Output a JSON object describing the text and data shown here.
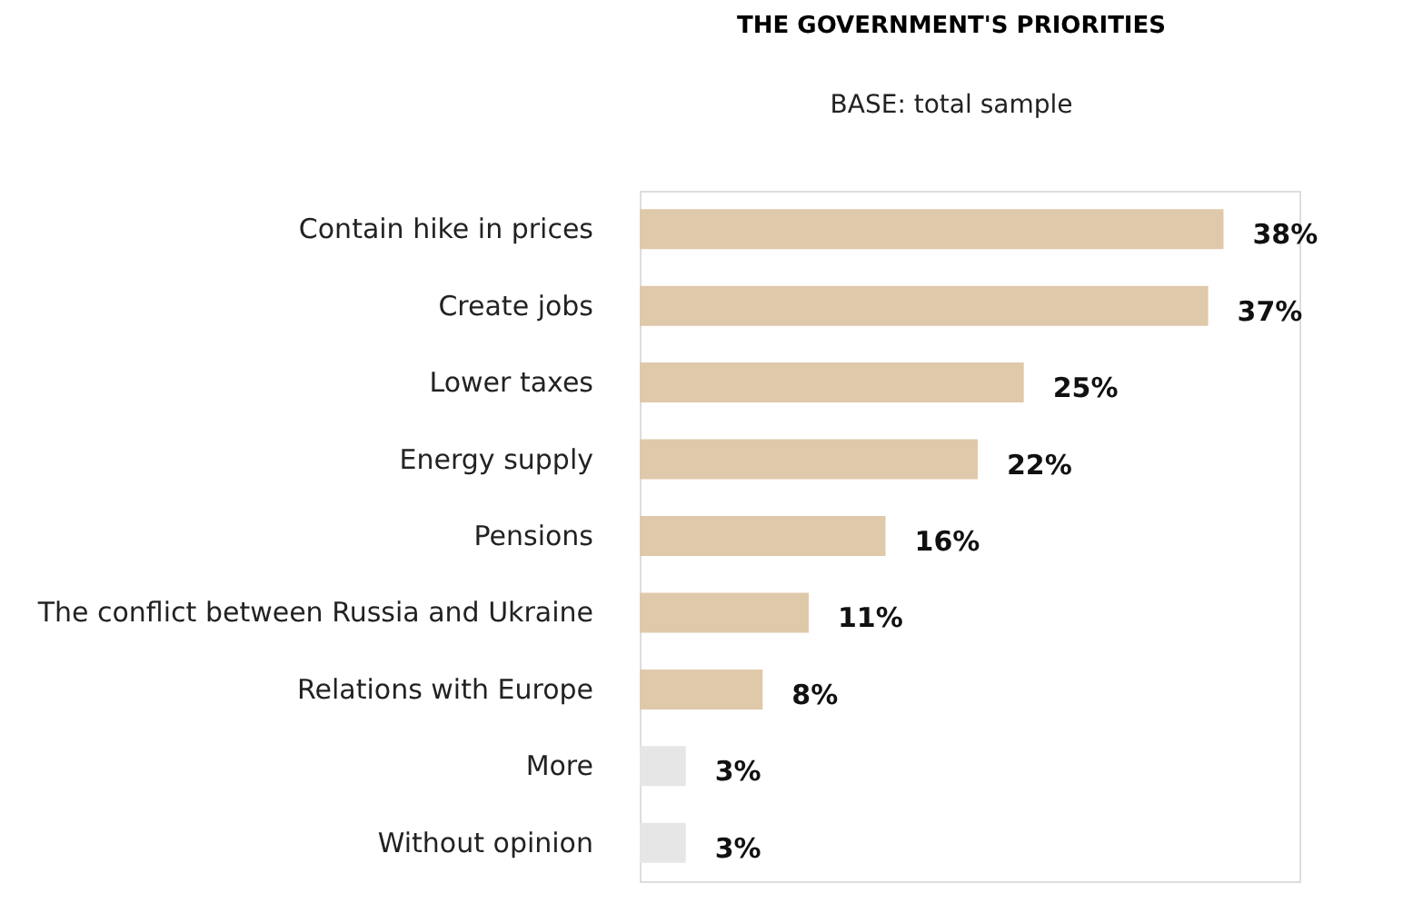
{
  "chart_data": {
    "type": "bar",
    "orientation": "horizontal",
    "title": "THE GOVERNMENT'S PRIORITIES",
    "subtitle": "BASE: total sample",
    "categories": [
      "Contain hike in prices",
      "Create jobs",
      "Lower taxes",
      "Energy supply",
      "Pensions",
      "The conflict between Russia and Ukraine",
      "Relations with Europe",
      "More",
      "Without opinion"
    ],
    "values": [
      38,
      37,
      25,
      22,
      16,
      11,
      8,
      3,
      3
    ],
    "colors": [
      "#dfc9ab",
      "#dfc9ab",
      "#dfc9ab",
      "#dfc9ab",
      "#dfc9ab",
      "#dfc9ab",
      "#dfc9ab",
      "#e6e6e6",
      "#e6e6e6"
    ],
    "value_labels": [
      "38%",
      "37%",
      "25%",
      "22%",
      "16%",
      "11%",
      "8%",
      "3%",
      "3%"
    ]
  }
}
